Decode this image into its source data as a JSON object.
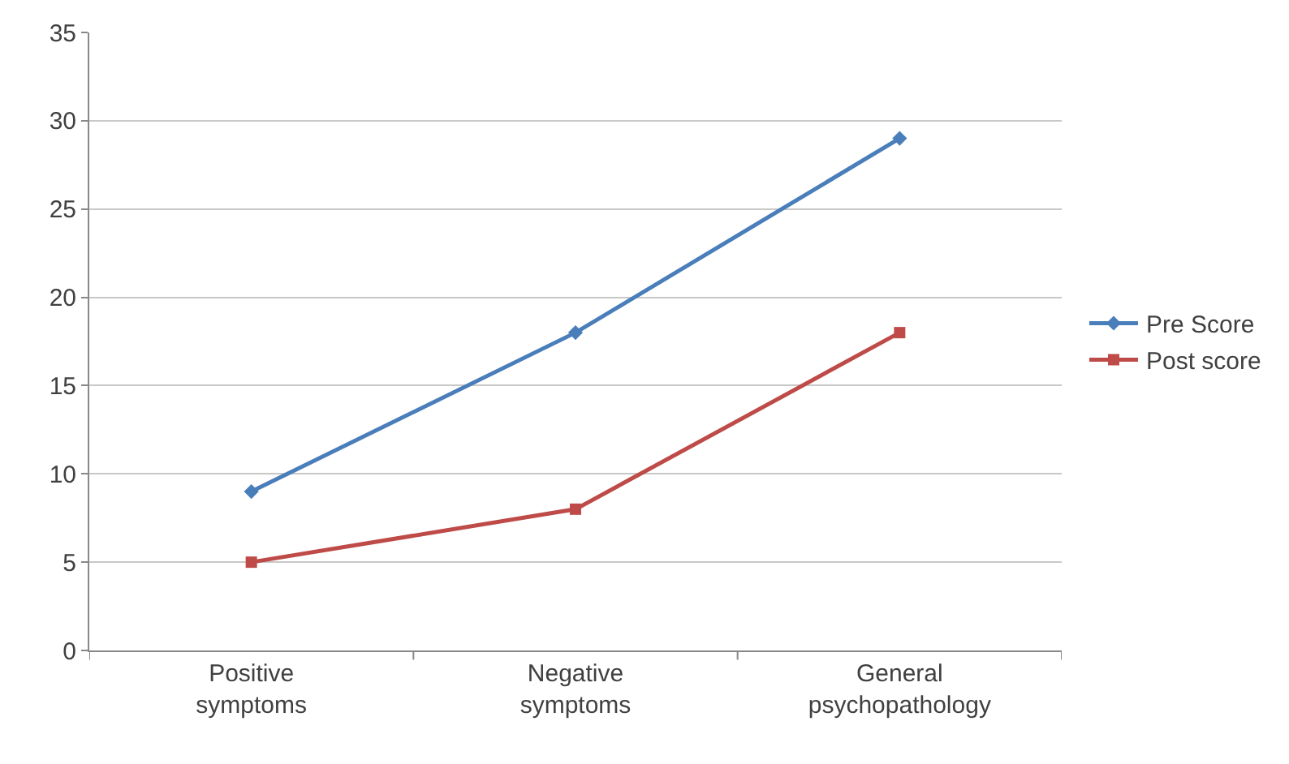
{
  "chart_data": {
    "type": "line",
    "categories": [
      "Positive symptoms",
      "Negative symptoms",
      "General psychopathology"
    ],
    "series": [
      {
        "name": "Pre Score",
        "color": "#4a7ebb",
        "values": [
          9,
          18,
          29
        ],
        "marker": "diamond"
      },
      {
        "name": "Post score",
        "color": "#be4b48",
        "values": [
          5,
          8,
          18
        ],
        "marker": "square"
      }
    ],
    "ylim": [
      0,
      35
    ],
    "yticks": [
      0,
      5,
      10,
      15,
      20,
      25,
      30,
      35
    ],
    "grid": "y",
    "legend": "right",
    "line_style": "solid"
  }
}
